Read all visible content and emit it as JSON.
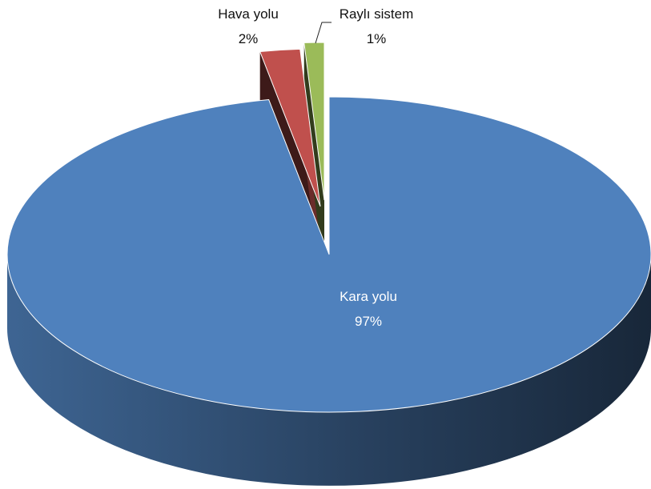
{
  "chart_data": {
    "type": "pie",
    "style": "3d-exploded",
    "title": "",
    "legend": "none",
    "slices": [
      {
        "name": "Kara yolu",
        "value": 97,
        "label": "97%",
        "color": "#4F81BD"
      },
      {
        "name": "Hava yolu",
        "value": 2,
        "label": "2%",
        "color": "#C0504D"
      },
      {
        "name": "Raylı sistem",
        "value": 1,
        "label": "1%",
        "color": "#9BBB59"
      }
    ]
  }
}
